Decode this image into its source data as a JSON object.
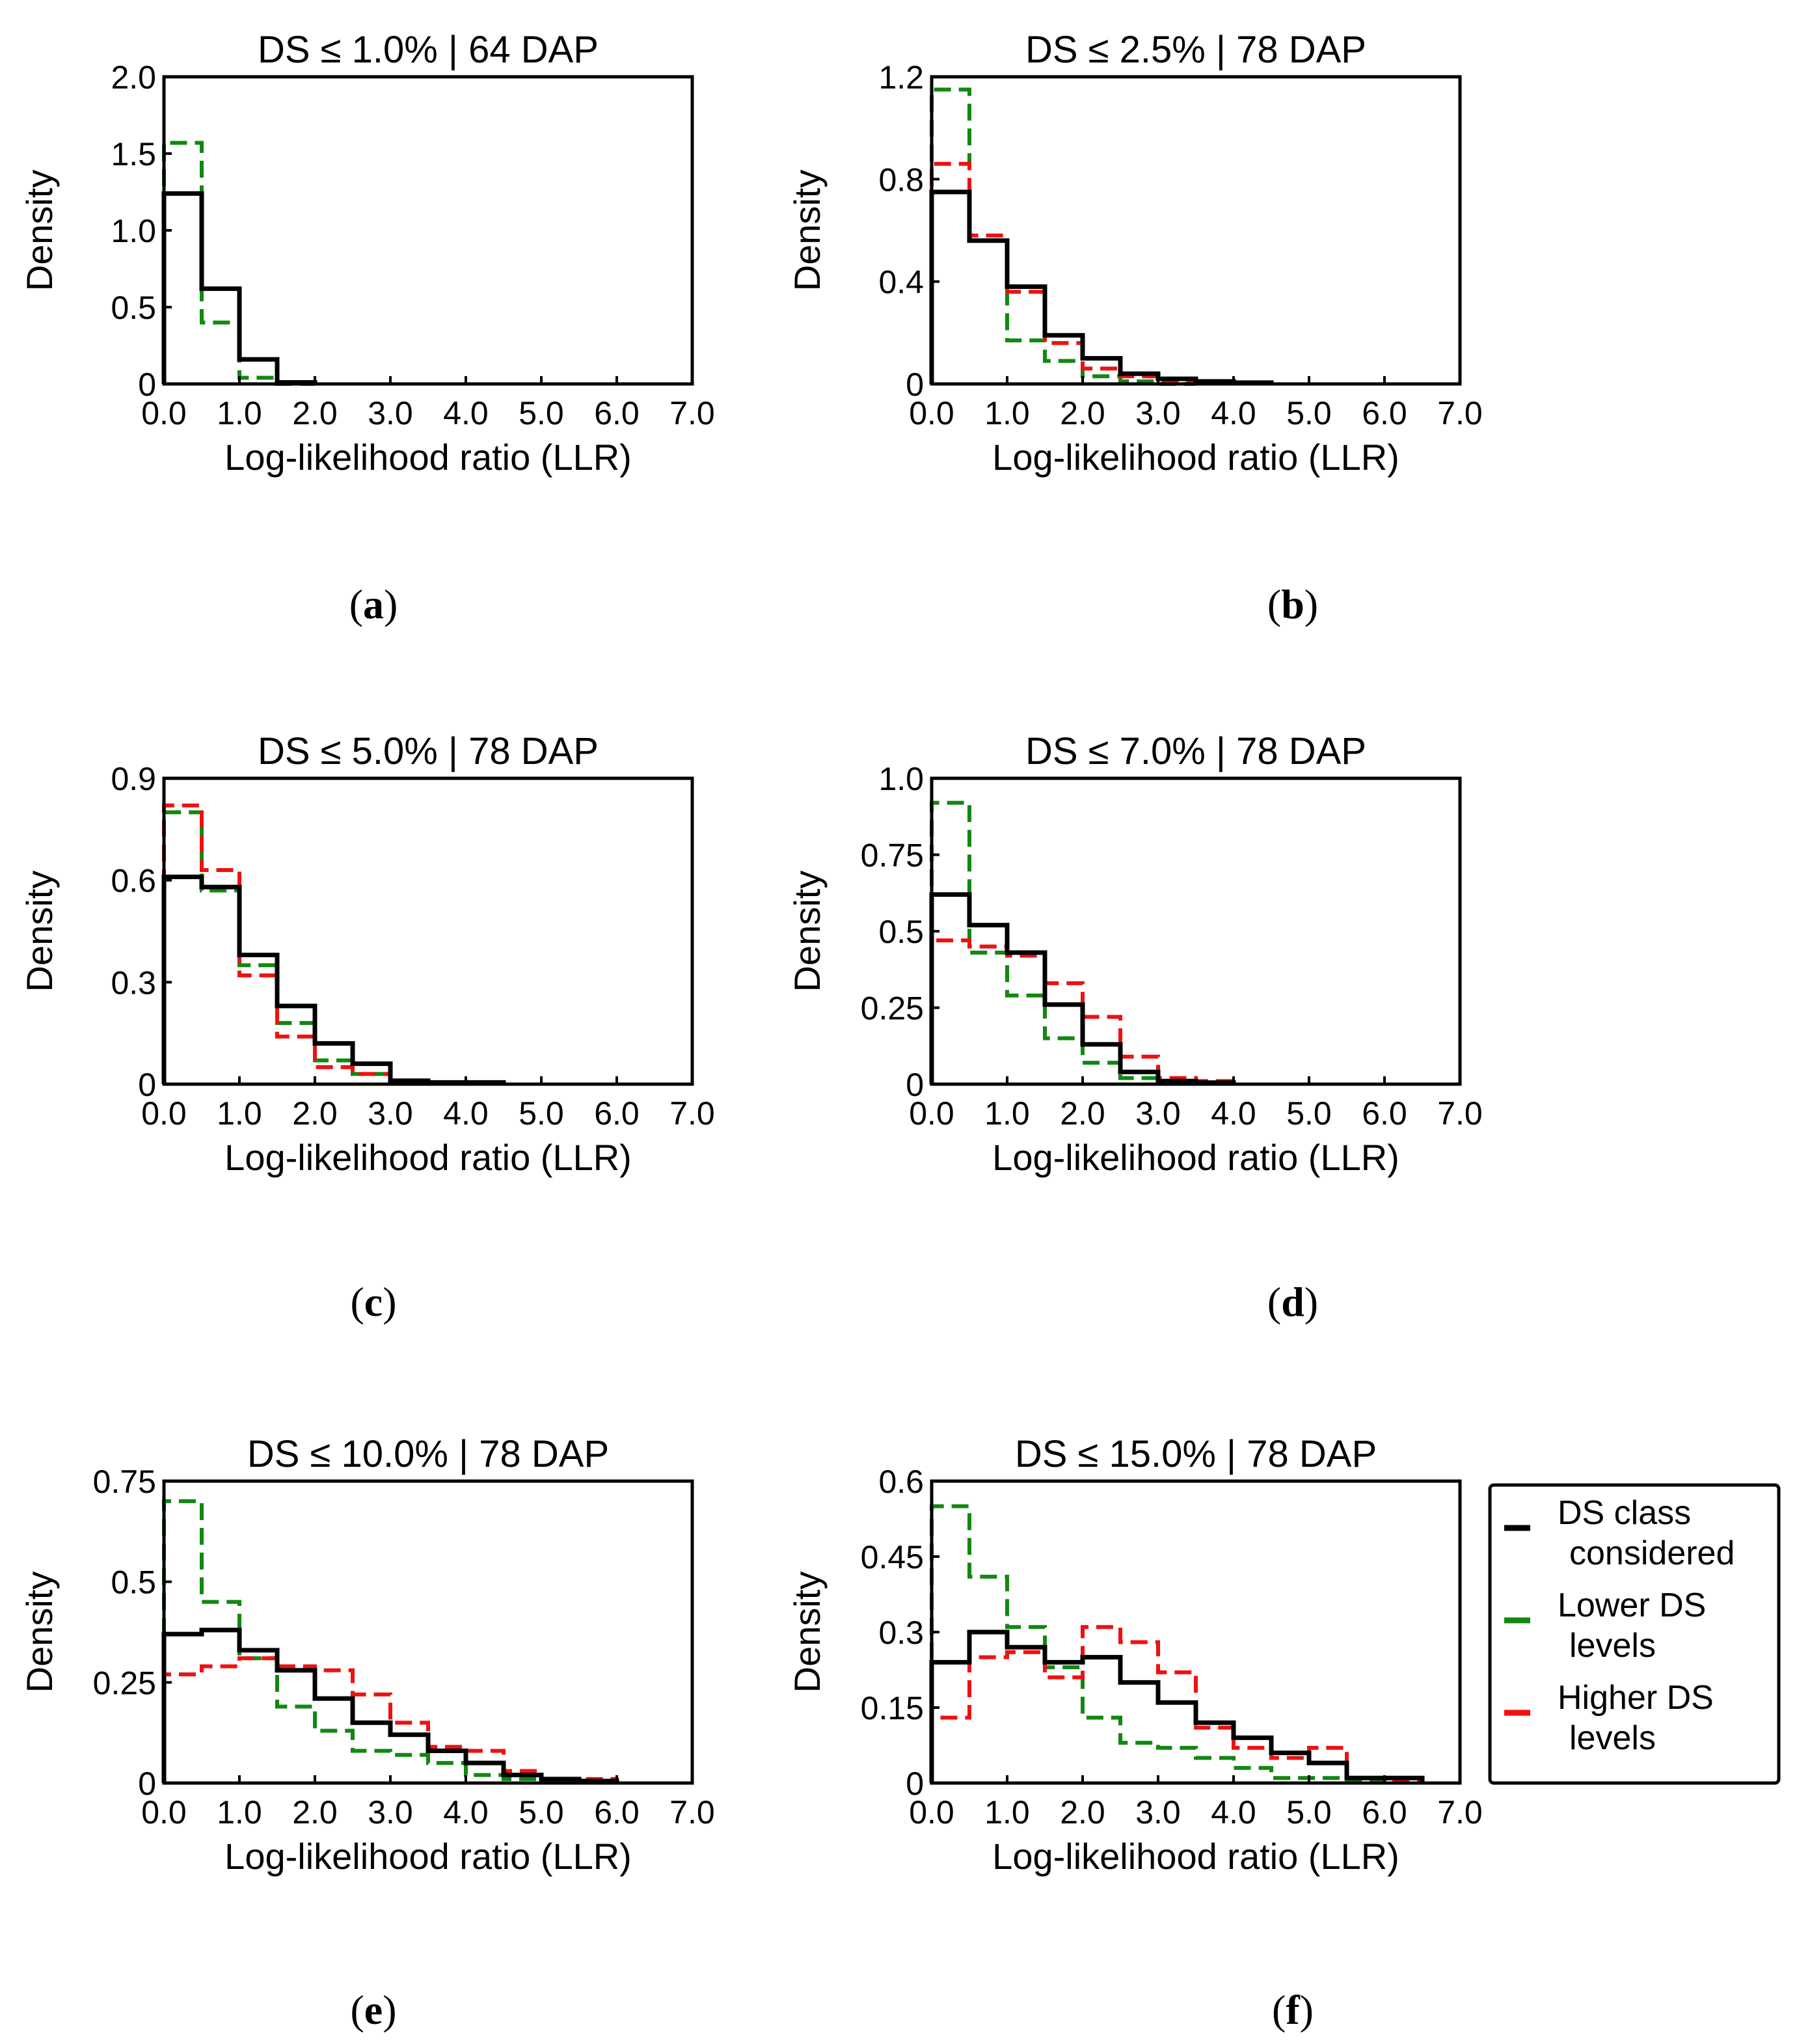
{
  "figure": {
    "legend": {
      "entries": [
        {
          "series_key": "considered",
          "lines": [
            "DS class",
            "considered"
          ],
          "color": "#000000",
          "dashed": false
        },
        {
          "series_key": "lower",
          "lines": [
            "Lower DS",
            "levels"
          ],
          "color": "#118811",
          "dashed": true
        },
        {
          "series_key": "higher",
          "lines": [
            "Higher DS",
            "levels"
          ],
          "color": "#ee1111",
          "dashed": true
        }
      ]
    }
  },
  "chart_data": [
    {
      "type": "histogram",
      "panel_label": "a",
      "title": "DS ≤ 1.0% | 64 DAP",
      "xlabel": "Log-likelihood ratio (LLR)",
      "ylabel": "Density",
      "xlim": [
        0,
        7
      ],
      "ylim": [
        0,
        2.0
      ],
      "xticks": [
        0,
        1,
        2,
        3,
        4,
        5,
        6,
        7
      ],
      "xtick_labels": [
        "0.0",
        "1.0",
        "2.0",
        "3.0",
        "4.0",
        "5.0",
        "6.0",
        "7.0"
      ],
      "yticks": [
        0,
        0.5,
        1.0,
        1.5,
        2.0
      ],
      "ytick_labels": [
        "0",
        "0.5",
        "1.0",
        "1.5",
        "2.0"
      ],
      "bin_width": 0.5,
      "series": [
        {
          "key": "considered",
          "name": "DS class considered",
          "values": [
            1.24,
            0.62,
            0.16,
            0.01
          ]
        },
        {
          "key": "lower",
          "name": "Lower DS levels",
          "values": [
            1.57,
            0.4,
            0.04,
            0.0
          ]
        }
      ]
    },
    {
      "type": "histogram",
      "panel_label": "b",
      "title": "DS ≤ 2.5% | 78 DAP",
      "xlabel": "Log-likelihood ratio (LLR)",
      "ylabel": "Density",
      "xlim": [
        0,
        7
      ],
      "ylim": [
        0,
        1.2
      ],
      "xticks": [
        0,
        1,
        2,
        3,
        4,
        5,
        6,
        7
      ],
      "xtick_labels": [
        "0.0",
        "1.0",
        "2.0",
        "3.0",
        "4.0",
        "5.0",
        "6.0",
        "7.0"
      ],
      "yticks": [
        0,
        0.4,
        0.8,
        1.2
      ],
      "ytick_labels": [
        "0",
        "0.4",
        "0.8",
        "1.2"
      ],
      "bin_width": 0.5,
      "series": [
        {
          "key": "considered",
          "name": "DS class considered",
          "values": [
            0.75,
            0.56,
            0.38,
            0.19,
            0.1,
            0.04,
            0.02,
            0.01,
            0.005
          ]
        },
        {
          "key": "lower",
          "name": "Lower DS levels",
          "values": [
            1.15,
            0.56,
            0.17,
            0.09,
            0.03,
            0.01,
            0.0
          ]
        },
        {
          "key": "higher",
          "name": "Higher DS levels",
          "values": [
            0.86,
            0.58,
            0.36,
            0.16,
            0.06,
            0.03,
            0.01
          ]
        }
      ]
    },
    {
      "type": "histogram",
      "panel_label": "c",
      "title": "DS ≤ 5.0% | 78 DAP",
      "xlabel": "Log-likelihood ratio (LLR)",
      "ylabel": "Density",
      "xlim": [
        0,
        7
      ],
      "ylim": [
        0,
        0.9
      ],
      "xticks": [
        0,
        1,
        2,
        3,
        4,
        5,
        6,
        7
      ],
      "xtick_labels": [
        "0.0",
        "1.0",
        "2.0",
        "3.0",
        "4.0",
        "5.0",
        "6.0",
        "7.0"
      ],
      "yticks": [
        0,
        0.3,
        0.6,
        0.9
      ],
      "ytick_labels": [
        "0",
        "0.3",
        "0.6",
        "0.9"
      ],
      "bin_width": 0.5,
      "series": [
        {
          "key": "considered",
          "name": "DS class considered",
          "values": [
            0.61,
            0.58,
            0.38,
            0.23,
            0.12,
            0.06,
            0.01,
            0.005,
            0.005
          ]
        },
        {
          "key": "lower",
          "name": "Lower DS levels",
          "values": [
            0.8,
            0.57,
            0.35,
            0.18,
            0.07,
            0.03,
            0.01,
            0.005,
            0.005
          ]
        },
        {
          "key": "higher",
          "name": "Higher DS levels",
          "values": [
            0.82,
            0.63,
            0.32,
            0.14,
            0.05,
            0.03,
            0.005
          ]
        }
      ]
    },
    {
      "type": "histogram",
      "panel_label": "d",
      "title": "DS ≤ 7.0% | 78 DAP",
      "xlabel": "Log-likelihood ratio (LLR)",
      "ylabel": "Density",
      "xlim": [
        0,
        7
      ],
      "ylim": [
        0,
        1.0
      ],
      "xticks": [
        0,
        1,
        2,
        3,
        4,
        5,
        6,
        7
      ],
      "xtick_labels": [
        "0.0",
        "1.0",
        "2.0",
        "3.0",
        "4.0",
        "5.0",
        "6.0",
        "7.0"
      ],
      "yticks": [
        0,
        0.25,
        0.5,
        0.75,
        1.0
      ],
      "ytick_labels": [
        "0",
        "0.25",
        "0.5",
        "0.75",
        "1.0"
      ],
      "bin_width": 0.5,
      "series": [
        {
          "key": "considered",
          "name": "DS class considered",
          "values": [
            0.62,
            0.52,
            0.43,
            0.26,
            0.13,
            0.04,
            0.01,
            0.005
          ]
        },
        {
          "key": "lower",
          "name": "Lower DS levels",
          "values": [
            0.92,
            0.43,
            0.29,
            0.15,
            0.07,
            0.02,
            0.005
          ]
        },
        {
          "key": "higher",
          "name": "Higher DS levels",
          "values": [
            0.47,
            0.45,
            0.42,
            0.33,
            0.22,
            0.09,
            0.02,
            0.01
          ]
        }
      ]
    },
    {
      "type": "histogram",
      "panel_label": "e",
      "title": "DS ≤ 10.0% | 78 DAP",
      "xlabel": "Log-likelihood ratio (LLR)",
      "ylabel": "Density",
      "xlim": [
        0,
        7
      ],
      "ylim": [
        0,
        0.75
      ],
      "xticks": [
        0,
        1,
        2,
        3,
        4,
        5,
        6,
        7
      ],
      "xtick_labels": [
        "0.0",
        "1.0",
        "2.0",
        "3.0",
        "4.0",
        "5.0",
        "6.0",
        "7.0"
      ],
      "yticks": [
        0,
        0.25,
        0.5,
        0.75
      ],
      "ytick_labels": [
        "0",
        "0.25",
        "0.5",
        "0.75"
      ],
      "bin_width": 0.5,
      "series": [
        {
          "key": "considered",
          "name": "DS class considered",
          "values": [
            0.37,
            0.38,
            0.33,
            0.28,
            0.21,
            0.15,
            0.12,
            0.08,
            0.05,
            0.02,
            0.01,
            0.005
          ]
        },
        {
          "key": "lower",
          "name": "Lower DS levels",
          "values": [
            0.7,
            0.45,
            0.31,
            0.19,
            0.13,
            0.08,
            0.07,
            0.05,
            0.02,
            0.01,
            0.005
          ]
        },
        {
          "key": "higher",
          "name": "Higher DS levels",
          "values": [
            0.27,
            0.29,
            0.31,
            0.29,
            0.28,
            0.22,
            0.15,
            0.09,
            0.08,
            0.03,
            0.01,
            0.01
          ]
        }
      ]
    },
    {
      "type": "histogram",
      "panel_label": "f",
      "title": "DS ≤ 15.0% | 78 DAP",
      "xlabel": "Log-likelihood ratio (LLR)",
      "ylabel": "Density",
      "xlim": [
        0,
        7
      ],
      "ylim": [
        0,
        0.6
      ],
      "xticks": [
        0,
        1,
        2,
        3,
        4,
        5,
        6,
        7
      ],
      "xtick_labels": [
        "0.0",
        "1.0",
        "2.0",
        "3.0",
        "4.0",
        "5.0",
        "6.0",
        "7.0"
      ],
      "yticks": [
        0,
        0.15,
        0.3,
        0.45,
        0.6
      ],
      "ytick_labels": [
        "0",
        "0.15",
        "0.3",
        "0.45",
        "0.6"
      ],
      "bin_width": 0.5,
      "series": [
        {
          "key": "considered",
          "name": "DS class considered",
          "values": [
            0.24,
            0.3,
            0.27,
            0.24,
            0.25,
            0.2,
            0.16,
            0.12,
            0.09,
            0.06,
            0.04,
            0.01,
            0.01
          ]
        },
        {
          "key": "lower",
          "name": "Lower DS levels",
          "values": [
            0.55,
            0.41,
            0.31,
            0.23,
            0.13,
            0.08,
            0.07,
            0.05,
            0.03,
            0.01,
            0.01,
            0.005
          ]
        },
        {
          "key": "higher",
          "name": "Higher DS levels",
          "values": [
            0.13,
            0.25,
            0.26,
            0.21,
            0.31,
            0.28,
            0.22,
            0.11,
            0.07,
            0.05,
            0.07,
            0.01,
            0.005
          ]
        }
      ]
    }
  ]
}
